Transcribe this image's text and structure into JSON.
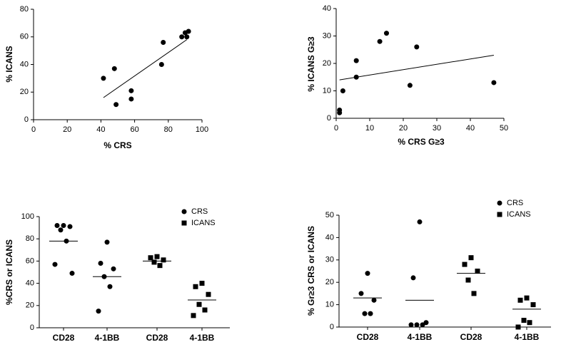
{
  "chart_data": [
    {
      "type": "scatter",
      "xlabel": "% CRS",
      "ylabel": "% ICANS",
      "x": [
        41.5,
        48,
        49,
        58,
        58,
        76,
        77,
        88,
        90,
        92,
        91
      ],
      "values": [
        30,
        37,
        11,
        21,
        15,
        40,
        56,
        60,
        63,
        64,
        60
      ],
      "trendline": {
        "x": [
          41.5,
          91
        ],
        "y": [
          16,
          58
        ]
      },
      "xlim": [
        0,
        100
      ],
      "xticks": [
        0,
        20,
        40,
        60,
        80,
        100
      ],
      "ylim": [
        0,
        80
      ],
      "yticks": [
        0,
        20,
        40,
        60,
        80
      ],
      "color": "#000000"
    },
    {
      "type": "scatter",
      "xlabel": "% CRS G≥3",
      "ylabel": "% ICANS G≥3",
      "x": [
        1,
        1,
        2,
        6,
        6,
        13,
        15,
        24,
        22,
        47
      ],
      "values": [
        3,
        2,
        10,
        21,
        15,
        28,
        31,
        26,
        12,
        13
      ],
      "trendline": {
        "x": [
          1,
          47
        ],
        "y": [
          14,
          23
        ]
      },
      "xlim": [
        0,
        50
      ],
      "xticks": [
        0,
        10,
        20,
        30,
        40,
        50
      ],
      "ylim": [
        0,
        40
      ],
      "yticks": [
        0,
        10,
        20,
        30,
        40
      ],
      "color": "#000000"
    },
    {
      "type": "dot",
      "ylabel": "%CRS or ICANS",
      "categories": [
        "CD28",
        "4-1BB",
        "CD28",
        "4-1BB"
      ],
      "series": [
        {
          "name": "CRS",
          "marker": "circle",
          "color": "#000000",
          "values": [
            [
              92,
              92,
              91,
              88,
              78,
              57,
              49
            ],
            [
              77,
              58,
              53,
              46,
              37,
              15
            ],
            null,
            null
          ]
        },
        {
          "name": "ICANS",
          "marker": "square",
          "color": "#000000",
          "values": [
            null,
            null,
            [
              64,
              63,
              61,
              59,
              56
            ],
            [
              40,
              37,
              30,
              21,
              16,
              11
            ]
          ]
        }
      ],
      "lines": [
        78,
        46,
        60,
        25
      ],
      "ylim": [
        0,
        100
      ],
      "yticks": [
        0,
        20,
        40,
        60,
        80,
        100
      ]
    },
    {
      "type": "dot",
      "ylabel": "% Gr≥3 CRS or ICANS",
      "categories": [
        "CD28",
        "4-1BB",
        "CD28",
        "4-1BB"
      ],
      "series": [
        {
          "name": "CRS",
          "marker": "circle",
          "color": "#000000",
          "values": [
            [
              24,
              15,
              12,
              6,
              6
            ],
            [
              47,
              22,
              2,
              1,
              1,
              1
            ],
            null,
            null
          ]
        },
        {
          "name": "ICANS",
          "marker": "square",
          "color": "#000000",
          "values": [
            null,
            null,
            [
              31,
              28,
              25,
              21,
              15
            ],
            [
              13,
              12,
              10,
              3,
              2,
              0
            ]
          ]
        }
      ],
      "lines": [
        13,
        12,
        24,
        8
      ],
      "ylim": [
        0,
        50
      ],
      "yticks": [
        0,
        10,
        20,
        30,
        40,
        50
      ]
    }
  ]
}
